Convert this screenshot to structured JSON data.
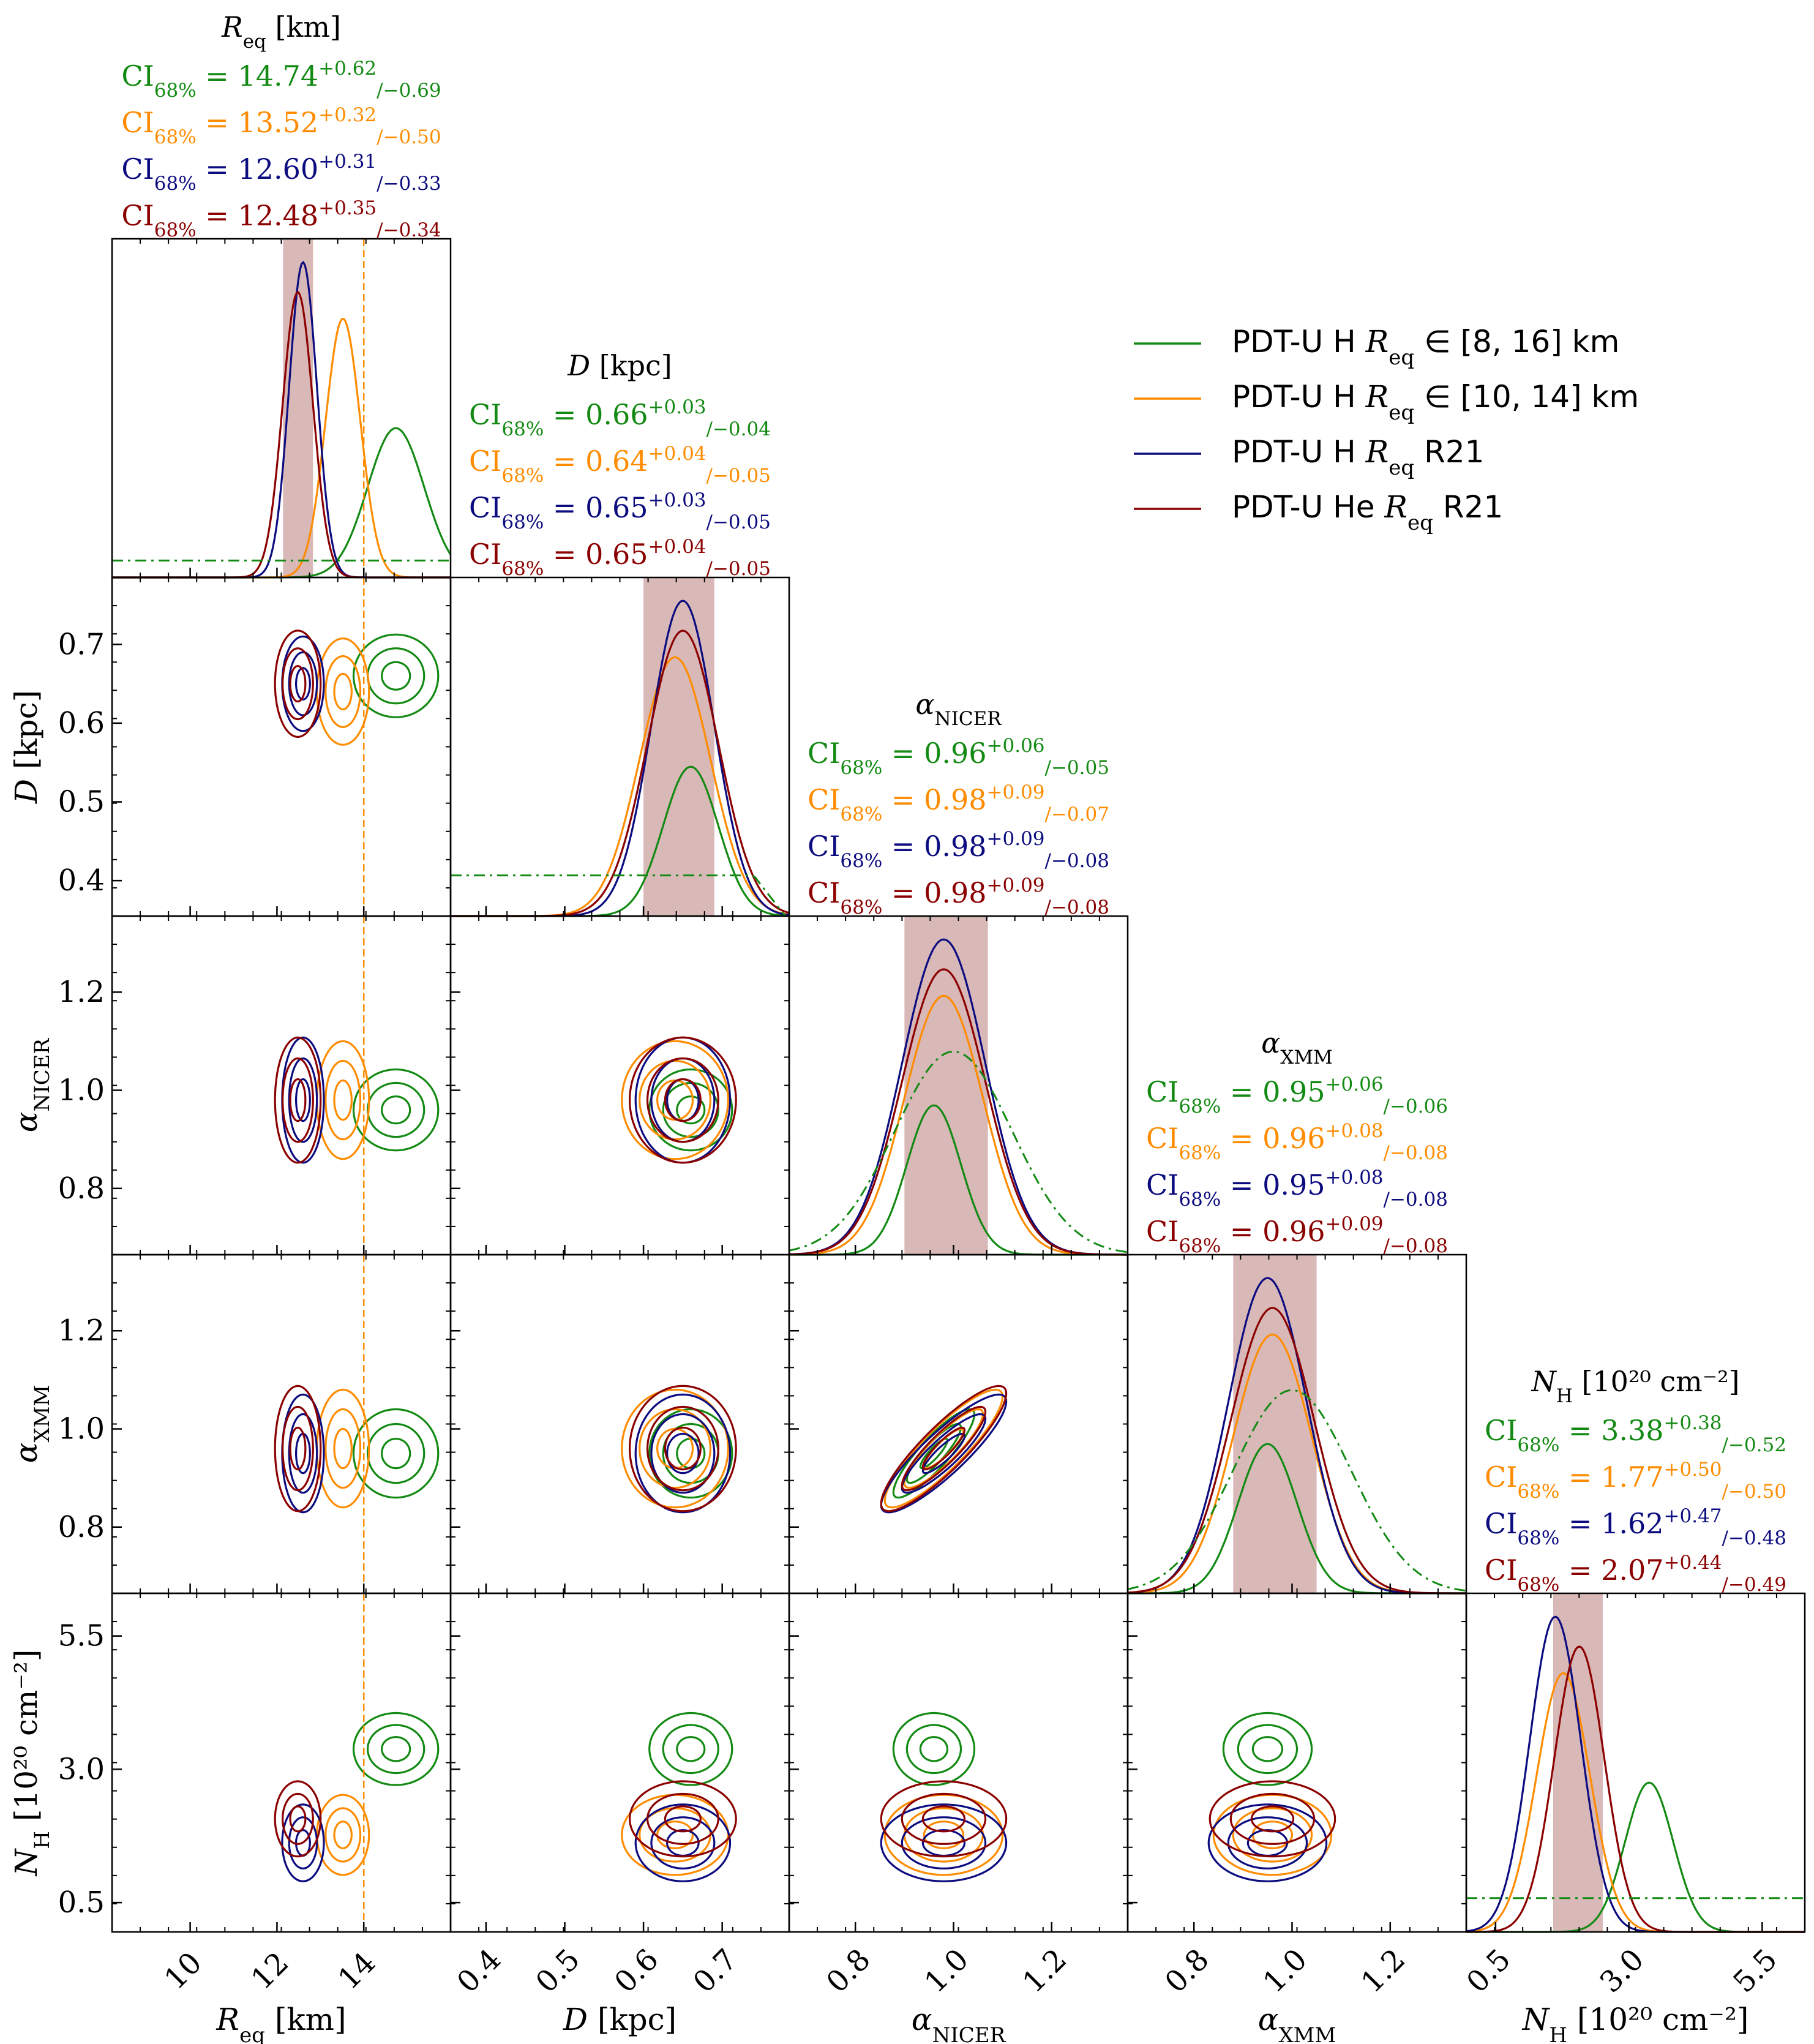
{
  "figure": {
    "params": [
      {
        "key": "R",
        "symbol": "R",
        "sub": "eq",
        "unit": " [km]",
        "ticks": [
          "10",
          "12",
          "14"
        ],
        "tickvals": [
          10,
          12,
          14
        ],
        "range": [
          8.2,
          16.0
        ]
      },
      {
        "key": "D",
        "symbol": "D",
        "sub": "",
        "unit": " [kpc]",
        "ticks": [
          "0.4",
          "0.5",
          "0.6",
          "0.7"
        ],
        "tickvals": [
          0.4,
          0.5,
          0.6,
          0.7
        ],
        "range": [
          0.355,
          0.785
        ]
      },
      {
        "key": "aN",
        "symbol": "α",
        "sub": "NICER",
        "unit": "",
        "ticks": [
          "0.8",
          "1.0",
          "1.2"
        ],
        "tickvals": [
          0.8,
          1.0,
          1.2
        ],
        "range": [
          0.665,
          1.355
        ]
      },
      {
        "key": "aX",
        "symbol": "α",
        "sub": "XMM",
        "unit": "",
        "ticks": [
          "0.8",
          "1.0",
          "1.2"
        ],
        "tickvals": [
          0.8,
          1.0,
          1.2
        ],
        "range": [
          0.665,
          1.355
        ]
      },
      {
        "key": "NH",
        "symbol": "N",
        "sub": "H",
        "unit": " [10²⁰ cm⁻²]",
        "ticks": [
          "0.5",
          "3.0",
          "5.5"
        ],
        "tickvals": [
          0.5,
          3.0,
          5.5
        ],
        "range": [
          -0.05,
          6.3
        ]
      }
    ],
    "ci_prefix": "CI",
    "ci_sub": "68%",
    "ci": [
      [
        [
          "14.74",
          "+0.62",
          "−0.69"
        ],
        [
          "13.52",
          "+0.32",
          "−0.50"
        ],
        [
          "12.60",
          "+0.31",
          "−0.33"
        ],
        [
          "12.48",
          "+0.35",
          "−0.34"
        ]
      ],
      [
        [
          "0.66",
          "+0.03",
          "−0.04"
        ],
        [
          "0.64",
          "+0.04",
          "−0.05"
        ],
        [
          "0.65",
          "+0.03",
          "−0.05"
        ],
        [
          "0.65",
          "+0.04",
          "−0.05"
        ]
      ],
      [
        [
          "0.96",
          "+0.06",
          "−0.05"
        ],
        [
          "0.98",
          "+0.09",
          "−0.07"
        ],
        [
          "0.98",
          "+0.09",
          "−0.08"
        ],
        [
          "0.98",
          "+0.09",
          "−0.08"
        ]
      ],
      [
        [
          "0.95",
          "+0.06",
          "−0.06"
        ],
        [
          "0.96",
          "+0.08",
          "−0.08"
        ],
        [
          "0.95",
          "+0.08",
          "−0.08"
        ],
        [
          "0.96",
          "+0.09",
          "−0.08"
        ]
      ],
      [
        [
          "3.38",
          "+0.38",
          "−0.52"
        ],
        [
          "1.77",
          "+0.50",
          "−0.50"
        ],
        [
          "1.62",
          "+0.47",
          "−0.48"
        ],
        [
          "2.07",
          "+0.44",
          "−0.49"
        ]
      ]
    ],
    "shaded_bands": [
      [
        12.14,
        12.83
      ],
      [
        0.6,
        0.69
      ],
      [
        0.9,
        1.07
      ],
      [
        0.88,
        1.05
      ],
      [
        1.58,
        2.51
      ]
    ],
    "prior_line_R": 14.0
  },
  "legend": [
    {
      "pre": "PDT-U H ",
      "sym": "R",
      "sub": "eq",
      "post": " ∈ [8, 16] km"
    },
    {
      "pre": "PDT-U H ",
      "sym": "R",
      "sub": "eq",
      "post": " ∈ [10, 14] km"
    },
    {
      "pre": "PDT-U H ",
      "sym": "R",
      "sub": "eq",
      "post": " R21"
    },
    {
      "pre": "PDT-U He ",
      "sym": "R",
      "sub": "eq",
      "post": " R21"
    }
  ],
  "colors": {
    "green": "#138a13",
    "orange": "#ff8c00",
    "navy": "#0c0c80",
    "maroon": "#8b0000",
    "band": "#c99a9a"
  },
  "chart_data": {
    "type": "corner",
    "series": [
      {
        "name": "PDT-U H Req ∈ [8, 16] km",
        "color": "#138a13",
        "mean": {
          "R": 14.74,
          "D": 0.66,
          "aN": 0.96,
          "aX": 0.95,
          "NH": 3.38
        },
        "sd": {
          "R": 0.65,
          "D": 0.035,
          "aN": 0.055,
          "aX": 0.06,
          "NH": 0.45
        }
      },
      {
        "name": "PDT-U H Req ∈ [10, 14] km",
        "color": "#ff8c00",
        "mean": {
          "R": 13.52,
          "D": 0.64,
          "aN": 0.98,
          "aX": 0.96,
          "NH": 1.77
        },
        "sd": {
          "R": 0.4,
          "D": 0.045,
          "aN": 0.08,
          "aX": 0.08,
          "NH": 0.5
        }
      },
      {
        "name": "PDT-U H Req R21",
        "color": "#0c0c80",
        "mean": {
          "R": 12.6,
          "D": 0.65,
          "aN": 0.98,
          "aX": 0.95,
          "NH": 1.62
        },
        "sd": {
          "R": 0.32,
          "D": 0.04,
          "aN": 0.085,
          "aX": 0.08,
          "NH": 0.48
        }
      },
      {
        "name": "PDT-U He Req R21",
        "color": "#8b0000",
        "mean": {
          "R": 12.48,
          "D": 0.65,
          "aN": 0.98,
          "aX": 0.96,
          "NH": 2.07
        },
        "sd": {
          "R": 0.35,
          "D": 0.045,
          "aN": 0.085,
          "aX": 0.085,
          "NH": 0.47
        }
      }
    ]
  }
}
